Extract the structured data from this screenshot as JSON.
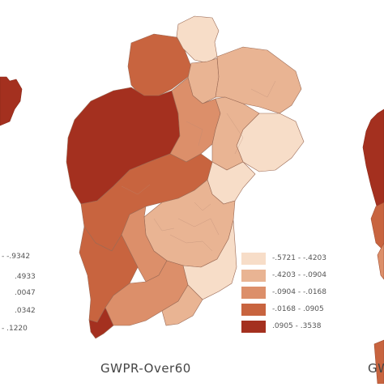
{
  "panels": [
    {
      "title": "GWPR-Over60"
    },
    {
      "title": "GW"
    }
  ],
  "left_legend": [
    ".9342",
    ".4933",
    ".0047",
    ".0342",
    ".1220"
  ],
  "center_legend": [
    {
      "label": "-.5721 - -.4203",
      "color": "#f7ddc8"
    },
    {
      "label": "-.4203 - -.0904",
      "color": "#e9b493"
    },
    {
      "label": "-.0904 - -.0168",
      "color": "#dc8f6a"
    },
    {
      "label": "-.0168 - .0905",
      "color": "#c8643f"
    },
    {
      "label": ".0905 - .3538",
      "color": "#a4301f"
    }
  ]
}
